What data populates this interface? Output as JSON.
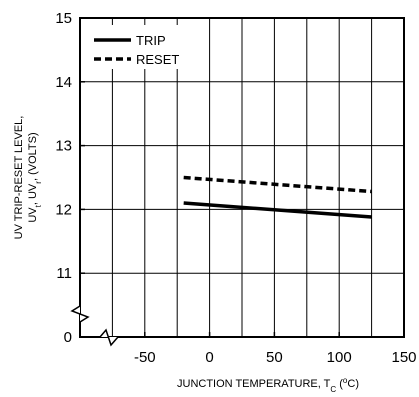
{
  "chart_data": {
    "type": "line",
    "title": "",
    "xlabel": {
      "prefix": "JUNCTION TEMPERATURE, T",
      "sub": "C",
      "mid": " (",
      "sup": "o",
      "suffix": "C)"
    },
    "ylabel": {
      "line1": "UV TRIP-RESET LEVEL,",
      "line2_a": "UV",
      "line2_a_sub": "t",
      "line2_b": ", UV",
      "line2_b_sub": "r",
      "line2_c": ", (VOLTS)"
    },
    "x_ticks": [
      -50,
      0,
      50,
      100,
      150
    ],
    "y_ticks": [
      11,
      12,
      13,
      14,
      15
    ],
    "axis_break_labels": {
      "x": "",
      "y": "0"
    },
    "xlim": [
      -100,
      150
    ],
    "ylim": [
      10,
      15
    ],
    "grid": true,
    "legend_position": "top-left",
    "series": [
      {
        "name": "TRIP",
        "style": "solid",
        "x": [
          -20,
          125
        ],
        "y": [
          12.1,
          11.88
        ]
      },
      {
        "name": "RESET",
        "style": "dashed",
        "x": [
          -20,
          125
        ],
        "y": [
          12.5,
          12.28
        ]
      }
    ]
  }
}
